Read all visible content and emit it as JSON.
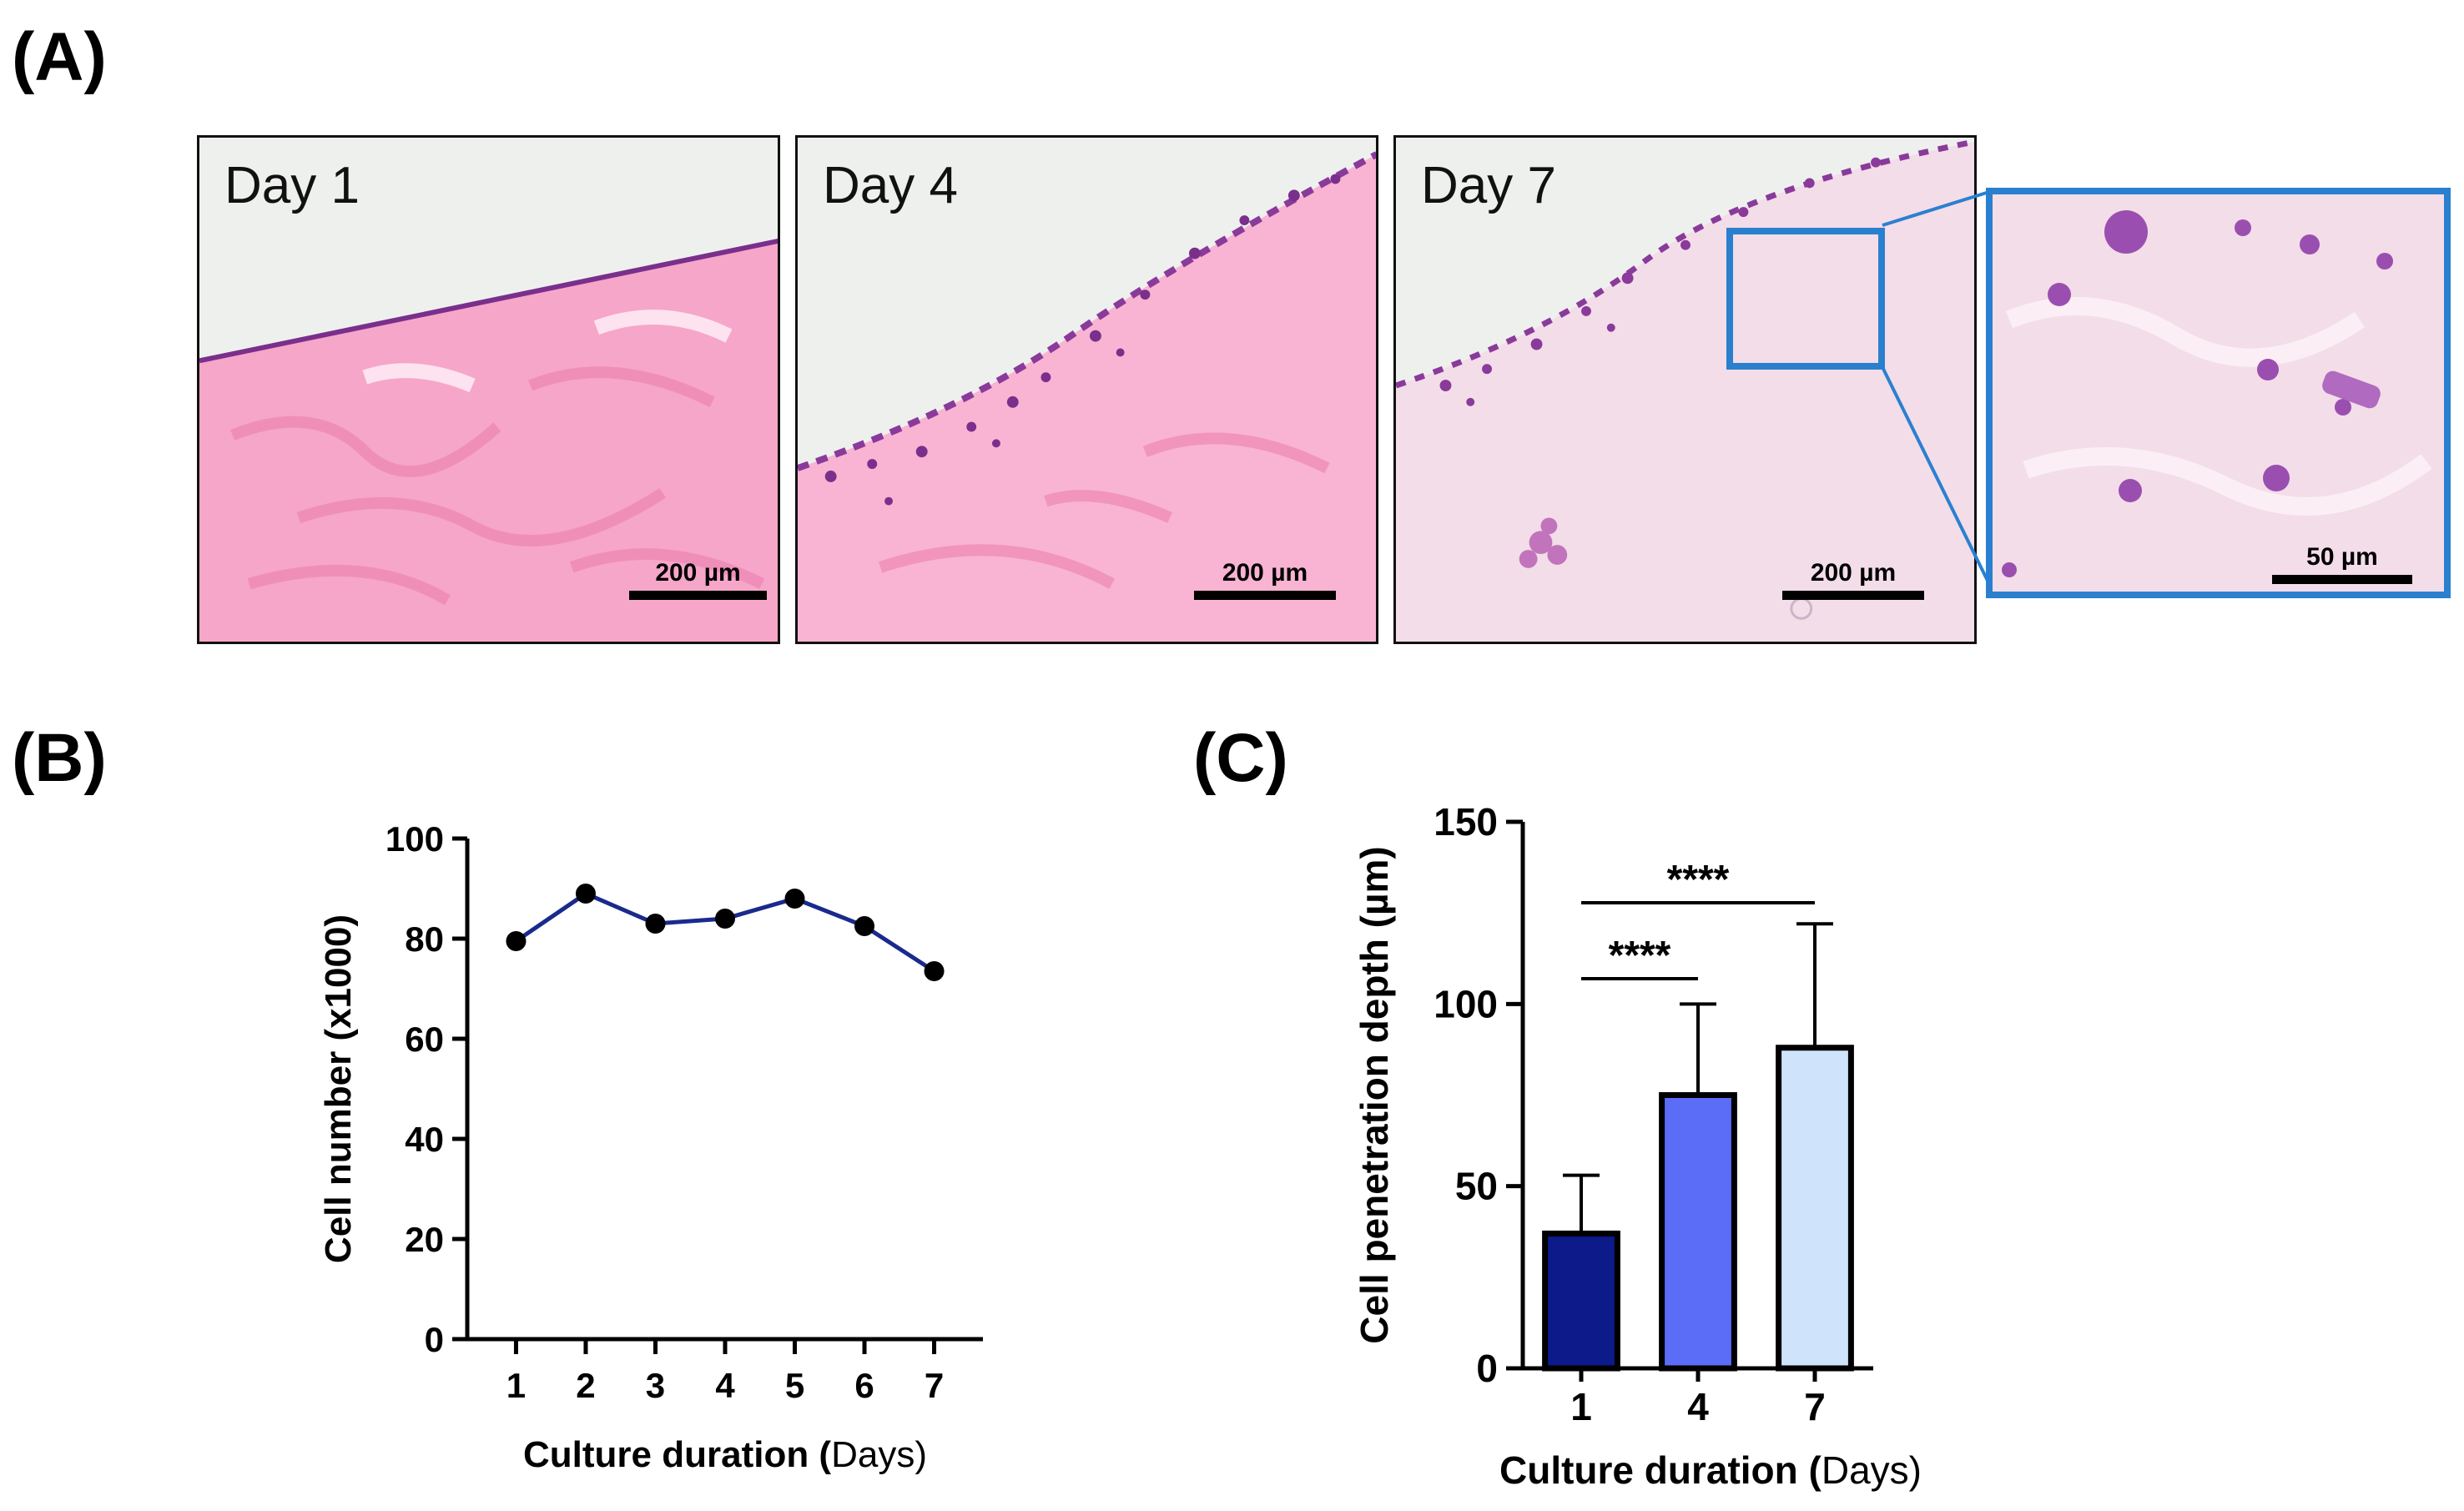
{
  "panels": {
    "A": "(A)",
    "B": "(B)",
    "C": "(C)"
  },
  "micrographs": [
    {
      "label": "Day 1",
      "scale": "200 µm"
    },
    {
      "label": "Day 4",
      "scale": "200 µm"
    },
    {
      "label": "Day 7",
      "scale": "200 µm"
    },
    {
      "label": "",
      "scale": "50 µm"
    }
  ],
  "colors": {
    "highlight_box": "#2a80cf",
    "tissue_pink": "#f6a6c8",
    "nuclei_purple": "#7a2f8c",
    "line_series": "#1a2a8c",
    "bar_day1": "#0c1a8a",
    "bar_day4": "#5b6cf6",
    "bar_day7": "#cfe3fa"
  },
  "chart_data": [
    {
      "type": "line",
      "panel": "B",
      "x": [
        1,
        2,
        3,
        4,
        5,
        6,
        7
      ],
      "y": [
        79.5,
        89,
        83,
        84,
        88,
        82.5,
        73.5
      ],
      "xlabel": "Culture duration (Days)",
      "xlabel_bold": "Culture duration (",
      "xlabel_unit": "Days",
      "xlabel_close": ")",
      "ylabel": "Cell number (x1000)",
      "ylim": [
        0,
        100
      ],
      "yticks": [
        0,
        20,
        40,
        60,
        80,
        100
      ],
      "xticks": [
        1,
        2,
        3,
        4,
        5,
        6,
        7
      ]
    },
    {
      "type": "bar",
      "panel": "C",
      "categories": [
        "1",
        "4",
        "7"
      ],
      "values": [
        37,
        75,
        88
      ],
      "errors": [
        16,
        25,
        34
      ],
      "xlabel": "Culture duration (Days)",
      "xlabel_bold": "Culture duration (",
      "xlabel_unit": "Days",
      "xlabel_close": ")",
      "ylabel": "Cell penetration depth (µm)",
      "ylim": [
        0,
        150
      ],
      "yticks": [
        0,
        50,
        100,
        150
      ],
      "significance": [
        {
          "from": "1",
          "to": "4",
          "label": "****"
        },
        {
          "from": "1",
          "to": "7",
          "label": "****"
        }
      ]
    }
  ]
}
